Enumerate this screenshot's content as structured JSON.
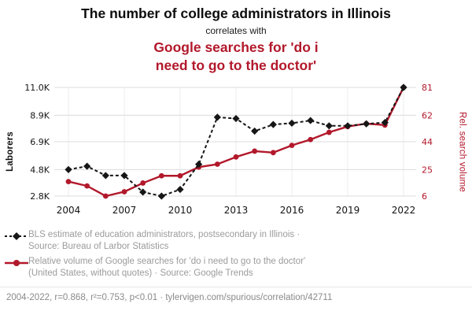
{
  "header": {
    "title": "The number of college administrators in Illinois",
    "connector": "correlates with",
    "subtitle": "Google searches for 'do i\nneed to go to the doctor'"
  },
  "colors": {
    "red": "#b2182b",
    "black": "#161616",
    "grid_h": "#dcdcdc",
    "grid_v": "#ececec",
    "legend_text": "#9b9b9b",
    "footer_text": "#8a8a8a"
  },
  "chart_data": {
    "type": "line",
    "x": [
      2004,
      2005,
      2006,
      2007,
      2008,
      2009,
      2010,
      2011,
      2012,
      2013,
      2014,
      2015,
      2016,
      2017,
      2018,
      2019,
      2020,
      2021,
      2022
    ],
    "x_ticks": [
      2004,
      2007,
      2010,
      2013,
      2016,
      2019,
      2022
    ],
    "left_axis": {
      "label": "Laborers",
      "tick_labels": [
        "2.8K",
        "4.8K",
        "6.9K",
        "8.9K",
        "11.0K"
      ],
      "tick_values": [
        2800,
        4800,
        6900,
        8900,
        11000
      ]
    },
    "right_axis": {
      "label": "Rel. search volume",
      "tick_labels": [
        "6",
        "25",
        "44",
        "62",
        "81"
      ],
      "tick_values": [
        6,
        25,
        44,
        62,
        81
      ]
    },
    "series": [
      {
        "name": "BLS estimate of education administrators, postsecondary in Illinois",
        "axis": "left",
        "style": "dashed-diamond",
        "values": [
          4800,
          5050,
          4350,
          4350,
          3100,
          2800,
          3300,
          5200,
          8750,
          8650,
          7700,
          8200,
          8300,
          8500,
          8100,
          8100,
          8250,
          8350,
          11000
        ]
      },
      {
        "name": "Relative volume of Google searches for 'do i need to go to the doctor'",
        "axis": "right",
        "style": "solid-circle",
        "values": [
          16,
          13,
          6,
          9,
          15,
          20,
          20,
          26,
          28,
          33,
          37,
          36,
          41,
          45,
          50,
          54,
          56,
          55,
          81
        ]
      }
    ]
  },
  "legend": {
    "item1": "BLS estimate of education administrators, postsecondary in Illinois ·\nSource: Bureau of Larbor Statistics",
    "item2": "Relative volume of Google searches for 'do i need to go to the doctor'\n(United States, without quotes) · Source: Google Trends"
  },
  "footer": "2004-2022, r=0.868, r²=0.753, p<0.01 · tylervigen.com/spurious/correlation/42711"
}
